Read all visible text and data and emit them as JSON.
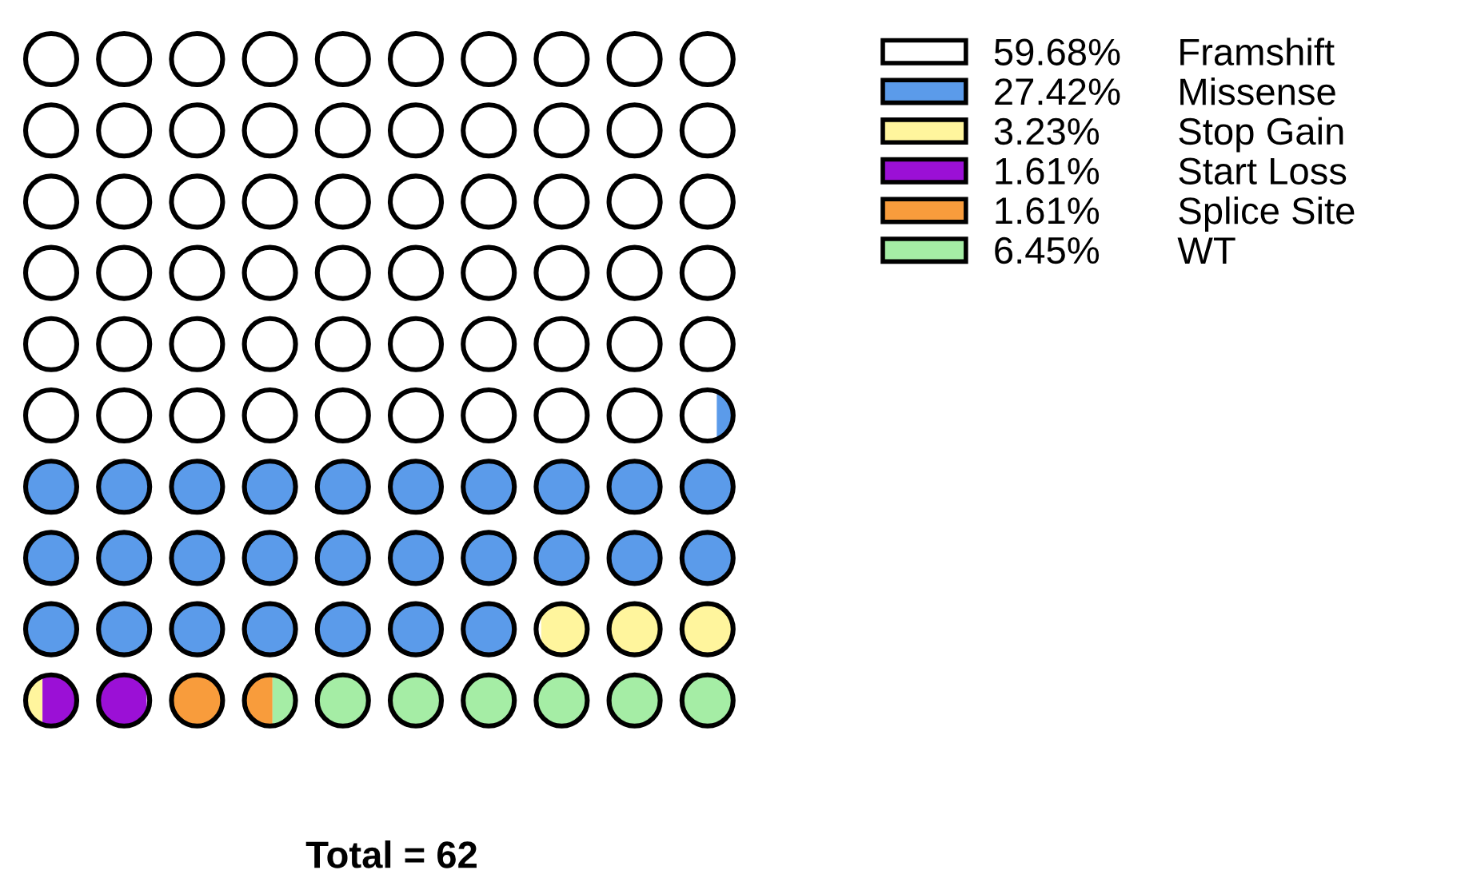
{
  "chart_data": {
    "type": "other",
    "categories": [
      "Framshift",
      "Missense",
      "Stop Gain",
      "Start Loss",
      "Splice Site",
      "WT"
    ],
    "values": [
      59.68,
      27.42,
      3.23,
      1.61,
      1.61,
      6.45
    ],
    "value_labels": [
      "59.68%",
      "27.42%",
      "3.23%",
      "1.61%",
      "1.61%",
      "6.45%"
    ],
    "colors": [
      "#ffffff",
      "#5b9bea",
      "#fff59d",
      "#9b10d6",
      "#f89c3c",
      "#a5eda5"
    ],
    "annotations": [
      "Total = 62"
    ]
  }
}
